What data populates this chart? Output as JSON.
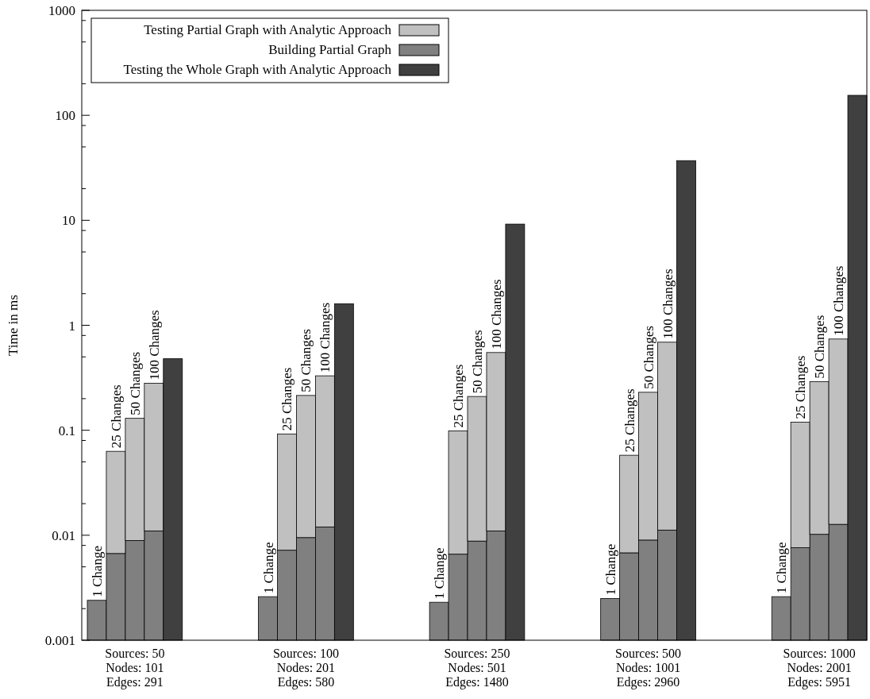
{
  "chart_data": {
    "type": "bar",
    "stacked": true,
    "log": true,
    "ylabel": "Time in ms",
    "legend": "top left",
    "categories": [
      null,
      null,
      "Sources: 50\nNodes: 101\nEdges: 291",
      null,
      null,
      null,
      null,
      null,
      null,
      null,
      null,
      "Sources: 100\nNodes: 201\nEdges: 580",
      null,
      null,
      null,
      null,
      null,
      null,
      null,
      null,
      "Sources: 250\nNodes: 501\nEdges: 1480",
      null,
      null,
      null,
      null,
      null,
      null,
      null,
      null,
      "Sources: 500\nNodes: 1001\nEdges: 2960",
      null,
      null,
      null,
      null,
      null,
      null,
      null,
      null,
      "Sources: 1000\nNodes: 2001\nEdges: 5951",
      null,
      null
    ],
    "series": [
      {
        "name": "Building Partial Graph",
        "color": "#808080",
        "values": [
          0.0024,
          0.0067,
          0.0089,
          0.011,
          null,
          null,
          null,
          null,
          null,
          0.0026,
          0.0072,
          0.0095,
          0.012,
          null,
          null,
          null,
          null,
          null,
          0.0023,
          0.0066,
          0.0088,
          0.011,
          null,
          null,
          null,
          null,
          null,
          0.0025,
          0.0068,
          0.009,
          0.0112,
          null,
          null,
          null,
          null,
          null,
          0.0026,
          0.0076,
          0.0102,
          0.0127,
          null
        ]
      },
      {
        "name": "Testing Partial Graph with Analytic Approach",
        "color": "#c0c0c0",
        "values": [
          null,
          0.0563,
          0.121,
          0.269,
          null,
          null,
          null,
          null,
          null,
          null,
          0.085,
          0.205,
          0.318,
          null,
          null,
          null,
          null,
          null,
          null,
          0.092,
          0.201,
          0.539,
          null,
          null,
          null,
          null,
          null,
          null,
          0.051,
          0.221,
          0.679,
          null,
          null,
          null,
          null,
          null,
          null,
          0.112,
          0.28,
          0.727,
          null
        ]
      },
      {
        "name": "Testing the Whole Graph with Analytic Approach",
        "color": "#404040",
        "values": [
          null,
          null,
          null,
          null,
          0.48,
          null,
          null,
          null,
          null,
          null,
          null,
          null,
          null,
          1.6,
          null,
          null,
          null,
          null,
          null,
          null,
          null,
          null,
          9.2,
          null,
          null,
          null,
          null,
          null,
          null,
          null,
          null,
          37,
          null,
          null,
          null,
          null,
          null,
          null,
          null,
          null,
          155
        ]
      }
    ],
    "ylim": [
      0.001,
      1000
    ],
    "yticks": [
      0.001,
      {
        "value": 0.002,
        "label": null
      },
      {
        "value": 0.005,
        "label": null
      },
      {
        "value": 0.008,
        "label": null
      },
      0.01,
      {
        "value": 0.02,
        "label": null
      },
      {
        "value": 0.05,
        "label": null
      },
      {
        "value": 0.08,
        "label": null
      },
      0.1,
      {
        "value": 0.2,
        "label": null
      },
      {
        "value": 0.5,
        "label": null
      },
      {
        "value": 0.8,
        "label": null
      },
      1,
      {
        "value": 2,
        "label": null
      },
      {
        "value": 5,
        "label": null
      },
      {
        "value": 8,
        "label": null
      },
      10,
      {
        "value": 20,
        "label": null
      },
      {
        "value": 50,
        "label": null
      },
      {
        "value": 80,
        "label": null
      },
      100,
      {
        "value": 200,
        "label": null
      },
      {
        "value": 500,
        "label": null
      },
      {
        "value": 800,
        "label": null
      },
      1000
    ],
    "annotations": [
      "1 Change",
      "25 Changes",
      "50 Changes",
      "100 Changes",
      "1 Change",
      "25 Changes",
      "50 Changes",
      "100 Changes",
      "1 Change",
      "25 Changes",
      "50 Changes",
      "100 Changes",
      "1 Change",
      "25 Changes",
      "50 Changes",
      "100 Changes",
      "1 Change",
      "25 Changes",
      "50 Changes",
      "100 Changes"
    ]
  }
}
